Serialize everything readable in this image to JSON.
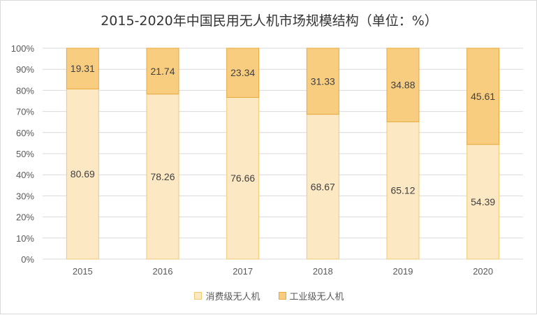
{
  "chart_data": {
    "type": "bar",
    "stacked": true,
    "title": "2015-2020年中国民用无人机市场规模结构（单位：%）",
    "categories": [
      "2015",
      "2016",
      "2017",
      "2018",
      "2019",
      "2020"
    ],
    "series": [
      {
        "name": "消费级无人机",
        "values": [
          80.69,
          78.26,
          76.66,
          68.67,
          65.12,
          54.39
        ],
        "color": "#fde8c4",
        "stroke": "#f3c971"
      },
      {
        "name": "工业级无人机",
        "values": [
          19.31,
          21.74,
          23.34,
          31.33,
          34.88,
          45.61
        ],
        "color": "#f9cd80",
        "stroke": "#e6a93a"
      }
    ],
    "yticks": [
      "0%",
      "10%",
      "20%",
      "30%",
      "40%",
      "50%",
      "60%",
      "70%",
      "80%",
      "90%",
      "100%"
    ],
    "ylim": [
      0,
      100
    ],
    "grid": true,
    "legend": "bottom"
  }
}
